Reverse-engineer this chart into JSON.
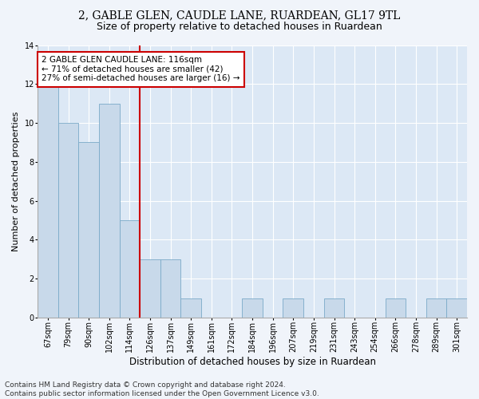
{
  "title1": "2, GABLE GLEN, CAUDLE LANE, RUARDEAN, GL17 9TL",
  "title2": "Size of property relative to detached houses in Ruardean",
  "xlabel": "Distribution of detached houses by size in Ruardean",
  "ylabel": "Number of detached properties",
  "categories": [
    "67sqm",
    "79sqm",
    "90sqm",
    "102sqm",
    "114sqm",
    "126sqm",
    "137sqm",
    "149sqm",
    "161sqm",
    "172sqm",
    "184sqm",
    "196sqm",
    "207sqm",
    "219sqm",
    "231sqm",
    "243sqm",
    "254sqm",
    "266sqm",
    "278sqm",
    "289sqm",
    "301sqm"
  ],
  "values": [
    12,
    10,
    9,
    11,
    5,
    3,
    3,
    1,
    0,
    0,
    1,
    0,
    1,
    0,
    1,
    0,
    0,
    1,
    0,
    1,
    1
  ],
  "bar_color": "#c8d9ea",
  "bar_edge_color": "#7aaac8",
  "highlight_index": 4,
  "highlight_line_color": "#cc0000",
  "annotation_text": "2 GABLE GLEN CAUDLE LANE: 116sqm\n← 71% of detached houses are smaller (42)\n27% of semi-detached houses are larger (16) →",
  "annotation_box_color": "#ffffff",
  "annotation_box_edge": "#cc0000",
  "ylim": [
    0,
    14
  ],
  "yticks": [
    0,
    2,
    4,
    6,
    8,
    10,
    12,
    14
  ],
  "fig_bg_color": "#f0f4fa",
  "plot_bg_color": "#dce8f5",
  "footer": "Contains HM Land Registry data © Crown copyright and database right 2024.\nContains public sector information licensed under the Open Government Licence v3.0.",
  "title1_fontsize": 10,
  "title2_fontsize": 9,
  "xlabel_fontsize": 8.5,
  "ylabel_fontsize": 8,
  "tick_fontsize": 7,
  "footer_fontsize": 6.5,
  "annot_fontsize": 7.5
}
